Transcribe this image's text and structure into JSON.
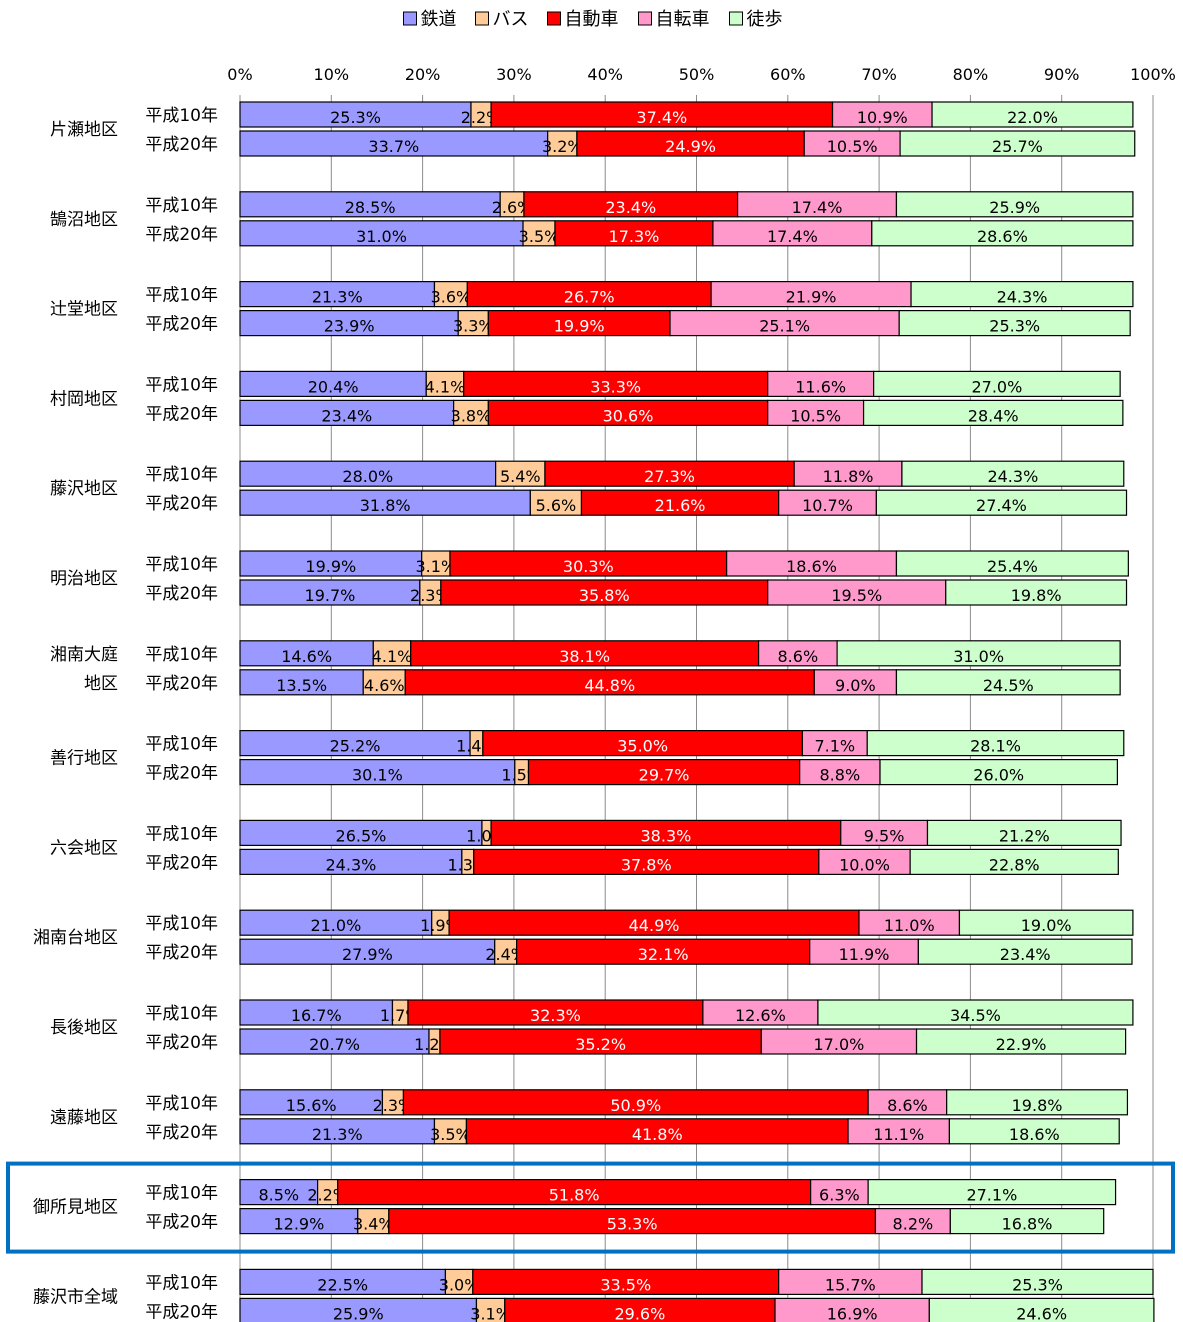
{
  "chart_data": {
    "type": "bar",
    "orientation": "horizontal",
    "stacked": true,
    "percent_stacked": true,
    "legend_position": "top",
    "xlim": [
      0,
      100
    ],
    "x_ticks": [
      "0%",
      "10%",
      "20%",
      "30%",
      "40%",
      "50%",
      "60%",
      "70%",
      "80%",
      "90%",
      "100%"
    ],
    "grid": true,
    "series": [
      {
        "name": "鉄道",
        "color": "#9999ff"
      },
      {
        "name": "バス",
        "color": "#ffcc99"
      },
      {
        "name": "自動車",
        "color": "#ff0000"
      },
      {
        "name": "自転車",
        "color": "#ff99cc"
      },
      {
        "name": "徒歩",
        "color": "#ccffcc"
      }
    ],
    "groups": [
      {
        "area": "片瀬地区",
        "bars": [
          {
            "year": "平成10年",
            "values": [
              25.3,
              2.2,
              37.4,
              10.9,
              22.0
            ]
          },
          {
            "year": "平成20年",
            "values": [
              33.7,
              3.2,
              24.9,
              10.5,
              25.7
            ]
          }
        ]
      },
      {
        "area": "鵠沼地区",
        "bars": [
          {
            "year": "平成10年",
            "values": [
              28.5,
              2.6,
              23.4,
              17.4,
              25.9
            ]
          },
          {
            "year": "平成20年",
            "values": [
              31.0,
              3.5,
              17.3,
              17.4,
              28.6
            ]
          }
        ]
      },
      {
        "area": "辻堂地区",
        "bars": [
          {
            "year": "平成10年",
            "values": [
              21.3,
              3.6,
              26.7,
              21.9,
              24.3
            ]
          },
          {
            "year": "平成20年",
            "values": [
              23.9,
              3.3,
              19.9,
              25.1,
              25.3
            ]
          }
        ]
      },
      {
        "area": "村岡地区",
        "bars": [
          {
            "year": "平成10年",
            "values": [
              20.4,
              4.1,
              33.3,
              11.6,
              27.0
            ]
          },
          {
            "year": "平成20年",
            "values": [
              23.4,
              3.8,
              30.6,
              10.5,
              28.4
            ]
          }
        ]
      },
      {
        "area": "藤沢地区",
        "bars": [
          {
            "year": "平成10年",
            "values": [
              28.0,
              5.4,
              27.3,
              11.8,
              24.3
            ]
          },
          {
            "year": "平成20年",
            "values": [
              31.8,
              5.6,
              21.6,
              10.7,
              27.4
            ]
          }
        ]
      },
      {
        "area": "明治地区",
        "bars": [
          {
            "year": "平成10年",
            "values": [
              19.9,
              3.1,
              30.3,
              18.6,
              25.4
            ]
          },
          {
            "year": "平成20年",
            "values": [
              19.7,
              2.3,
              35.8,
              19.5,
              19.8
            ]
          }
        ]
      },
      {
        "area": "湘南大庭地区",
        "area_lines": [
          "湘南大庭",
          "地区"
        ],
        "bars": [
          {
            "year": "平成10年",
            "values": [
              14.6,
              4.1,
              38.1,
              8.6,
              31.0
            ]
          },
          {
            "year": "平成20年",
            "values": [
              13.5,
              4.6,
              44.8,
              9.0,
              24.5
            ]
          }
        ]
      },
      {
        "area": "善行地区",
        "bars": [
          {
            "year": "平成10年",
            "values": [
              25.2,
              1.4,
              35.0,
              7.1,
              28.1
            ]
          },
          {
            "year": "平成20年",
            "values": [
              30.1,
              1.5,
              29.7,
              8.8,
              26.0
            ]
          }
        ]
      },
      {
        "area": "六会地区",
        "bars": [
          {
            "year": "平成10年",
            "values": [
              26.5,
              1.0,
              38.3,
              9.5,
              21.2
            ]
          },
          {
            "year": "平成20年",
            "values": [
              24.3,
              1.3,
              37.8,
              10.0,
              22.8
            ]
          }
        ]
      },
      {
        "area": "湘南台地区",
        "bars": [
          {
            "year": "平成10年",
            "values": [
              21.0,
              1.9,
              44.9,
              11.0,
              19.0
            ]
          },
          {
            "year": "平成20年",
            "values": [
              27.9,
              2.4,
              32.1,
              11.9,
              23.4
            ]
          }
        ]
      },
      {
        "area": "長後地区",
        "bars": [
          {
            "year": "平成10年",
            "values": [
              16.7,
              1.7,
              32.3,
              12.6,
              34.5
            ]
          },
          {
            "year": "平成20年",
            "values": [
              20.7,
              1.2,
              35.2,
              17.0,
              22.9
            ]
          }
        ]
      },
      {
        "area": "遠藤地区",
        "bars": [
          {
            "year": "平成10年",
            "values": [
              15.6,
              2.3,
              50.9,
              8.6,
              19.8
            ]
          },
          {
            "year": "平成20年",
            "values": [
              21.3,
              3.5,
              41.8,
              11.1,
              18.6
            ]
          }
        ]
      },
      {
        "area": "御所見地区",
        "highlighted": true,
        "bars": [
          {
            "year": "平成10年",
            "values": [
              8.5,
              2.2,
              51.8,
              6.3,
              27.1
            ]
          },
          {
            "year": "平成20年",
            "values": [
              12.9,
              3.4,
              53.3,
              8.2,
              16.8
            ]
          }
        ]
      },
      {
        "area": "藤沢市全域",
        "bars": [
          {
            "year": "平成10年",
            "values": [
              22.5,
              3.0,
              33.5,
              15.7,
              25.3
            ]
          },
          {
            "year": "平成20年",
            "values": [
              25.9,
              3.1,
              29.6,
              16.9,
              24.6
            ]
          }
        ]
      }
    ],
    "highlight_color": "#0070c0"
  }
}
